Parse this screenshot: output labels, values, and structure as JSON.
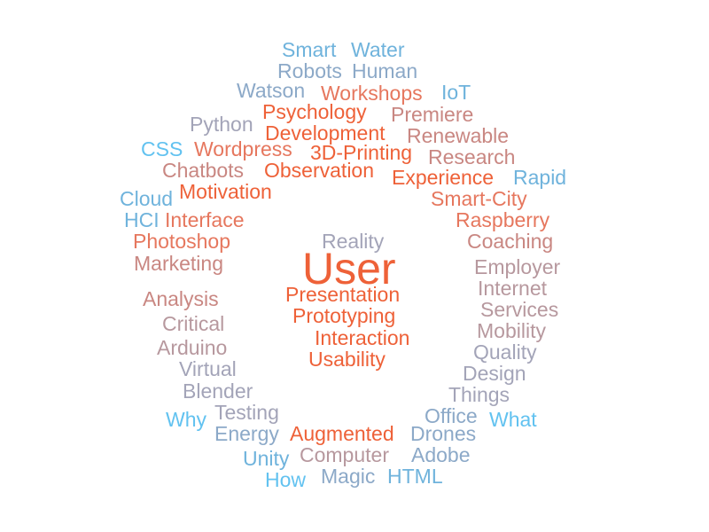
{
  "cloud": {
    "center_word": "User",
    "words": {
      "smart": "Smart",
      "water": "Water",
      "robots": "Robots",
      "human": "Human",
      "watson": "Watson",
      "workshops": "Workshops",
      "iot": "IoT",
      "python": "Python",
      "psychology": "Psychology",
      "premiere": "Premiere",
      "development": "Development",
      "css": "CSS",
      "wordpress": "Wordpress",
      "printing3d": "3D-Printing",
      "renewable": "Renewable",
      "research": "Research",
      "chatbots": "Chatbots",
      "observation": "Observation",
      "experience": "Experience",
      "rapid": "Rapid",
      "cloud": "Cloud",
      "motivation": "Motivation",
      "smartcity": "Smart-City",
      "hci": "HCI",
      "interface": "Interface",
      "raspberry": "Raspberry",
      "photoshop": "Photoshop",
      "reality": "Reality",
      "coaching": "Coaching",
      "marketing": "Marketing",
      "employer": "Employer",
      "internet": "Internet",
      "presentation": "Presentation",
      "analysis": "Analysis",
      "services": "Services",
      "prototyping": "Prototyping",
      "critical": "Critical",
      "mobility": "Mobility",
      "interaction": "Interaction",
      "arduino": "Arduino",
      "quality": "Quality",
      "usability": "Usability",
      "virtual": "Virtual",
      "design": "Design",
      "blender": "Blender",
      "things": "Things",
      "testing": "Testing",
      "why": "Why",
      "office": "Office",
      "what": "What",
      "energy": "Energy",
      "augmented": "Augmented",
      "drones": "Drones",
      "unity": "Unity",
      "computer": "Computer",
      "adobe": "Adobe",
      "how": "How",
      "magic": "Magic",
      "html": "HTML"
    }
  }
}
